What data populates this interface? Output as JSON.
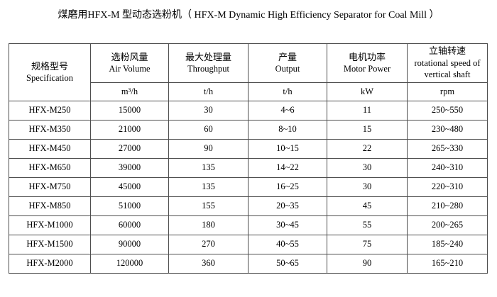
{
  "title": "煤磨用HFX-M 型动态选粉机（ HFX-M Dynamic High Efficiency Separator for Coal Mill ）",
  "table": {
    "columns": [
      {
        "zh": "规格型号",
        "en": "Specification",
        "unit": ""
      },
      {
        "zh": "选粉风量",
        "en": "Air Volume",
        "unit": "m³/h"
      },
      {
        "zh": "最大处理量",
        "en": "Throughput",
        "unit": "t/h"
      },
      {
        "zh": "产量",
        "en": "Output",
        "unit": "t/h"
      },
      {
        "zh": "电机功率",
        "en": "Motor Power",
        "unit": "kW"
      },
      {
        "zh": "立轴转速",
        "en": "rotational speed of vertical shaft",
        "unit": "rpm"
      }
    ],
    "rows": [
      [
        "HFX-M250",
        "15000",
        "30",
        "4~6",
        "11",
        "250~550"
      ],
      [
        "HFX-M350",
        "21000",
        "60",
        "8~10",
        "15",
        "230~480"
      ],
      [
        "HFX-M450",
        "27000",
        "90",
        "10~15",
        "22",
        "265~330"
      ],
      [
        "HFX-M650",
        "39000",
        "135",
        "14~22",
        "30",
        "240~310"
      ],
      [
        "HFX-M750",
        "45000",
        "135",
        "16~25",
        "30",
        "220~310"
      ],
      [
        "HFX-M850",
        "51000",
        "155",
        "20~35",
        "45",
        "210~280"
      ],
      [
        "HFX-M1000",
        "60000",
        "180",
        "30~45",
        "55",
        "200~265"
      ],
      [
        "HFX-M1500",
        "90000",
        "270",
        "40~55",
        "75",
        "185~240"
      ],
      [
        "HFX-M2000",
        "120000",
        "360",
        "50~65",
        "90",
        "165~210"
      ]
    ]
  }
}
